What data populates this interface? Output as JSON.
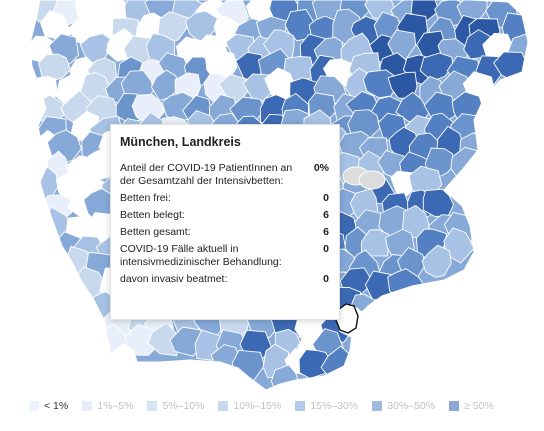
{
  "tooltip": {
    "title": "München, Landkreis",
    "rows": [
      {
        "label": "Anteil der COVID-19 PatientInnen an der Gesamtzahl der Intensivbetten:",
        "value": "0%"
      },
      {
        "label": "Betten frei:",
        "value": "0"
      },
      {
        "label": "Betten belegt:",
        "value": "6"
      },
      {
        "label": "Betten gesamt:",
        "value": "6"
      },
      {
        "label": "COVID-19 Fälle aktuell in intensivmedizinischer Behandlung:",
        "value": "0"
      },
      {
        "label": "davon invasiv beatmet:",
        "value": "0"
      }
    ]
  },
  "legend": [
    {
      "label": "< 1%",
      "color": "#eef2fb",
      "active": true
    },
    {
      "label": "1%–5%",
      "color": "#e6edf8",
      "active": false
    },
    {
      "label": "5%–10%",
      "color": "#d8e4f3",
      "active": false
    },
    {
      "label": "10%–15%",
      "color": "#c7d8ef",
      "active": false
    },
    {
      "label": "15%–30%",
      "color": "#b3c9e8",
      "active": false
    },
    {
      "label": "30%–50%",
      "color": "#9fb9df",
      "active": false
    },
    {
      "label": "≥ 50%",
      "color": "#8aa7d6",
      "active": false
    }
  ],
  "map": {
    "district_colors": [
      "#ffffff",
      "#e8effa",
      "#c8d9ee",
      "#a7c2e4",
      "#86a9d8",
      "#6b93cc",
      "#5380c2",
      "#3c69b3",
      "#2c57a3",
      "#1f4690"
    ],
    "no_data_color": "#dcdcdc",
    "highlighted_district": "München, Landkreis"
  }
}
